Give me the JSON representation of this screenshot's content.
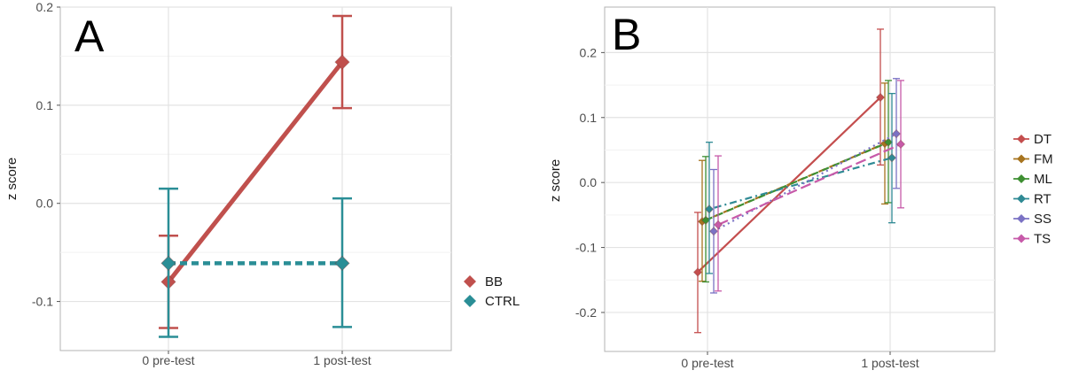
{
  "chart_data": [
    {
      "panel_label": "A",
      "type": "line",
      "x": [
        "0 pre-test",
        "1 post-test"
      ],
      "ylabel": "z score",
      "ylim": [
        -0.15,
        0.2
      ],
      "yticks": [
        -0.1,
        0.0,
        0.1,
        0.2
      ],
      "ytick_labels": [
        "-0.1",
        "0.0",
        "0.1",
        "0.2"
      ],
      "grid": true,
      "legend_position": "right",
      "series": [
        {
          "name": "BB",
          "color": "#c0504d",
          "marker": "diamond",
          "line": "solid",
          "values": [
            -0.08,
            0.144
          ],
          "err_lo": [
            -0.127,
            0.097
          ],
          "err_hi": [
            -0.033,
            0.191
          ]
        },
        {
          "name": "CTRL",
          "color": "#2a8e96",
          "marker": "diamond",
          "line": "dashed",
          "values": [
            -0.061,
            -0.061
          ],
          "err_lo": [
            -0.136,
            -0.126
          ],
          "err_hi": [
            0.015,
            0.005
          ]
        }
      ]
    },
    {
      "panel_label": "B",
      "type": "line",
      "x": [
        "0 pre-test",
        "1 post-test"
      ],
      "ylabel": "z score",
      "ylim": [
        -0.26,
        0.27
      ],
      "yticks": [
        -0.2,
        -0.1,
        0.0,
        0.1,
        0.2
      ],
      "ytick_labels": [
        "-0.2",
        "-0.1",
        "0.0",
        "0.1",
        "0.2"
      ],
      "grid": true,
      "legend_position": "right",
      "series": [
        {
          "name": "DT",
          "color": "#c44e4e",
          "marker": "diamond",
          "line": "solid",
          "values": [
            -0.138,
            0.131
          ],
          "err_lo": [
            -0.231,
            0.027
          ],
          "err_hi": [
            -0.046,
            0.236
          ]
        },
        {
          "name": "FM",
          "color": "#a7741f",
          "marker": "diamond",
          "line": "dashed",
          "values": [
            -0.06,
            0.06
          ],
          "err_lo": [
            -0.152,
            -0.033
          ],
          "err_hi": [
            0.034,
            0.153
          ]
        },
        {
          "name": "ML",
          "color": "#3e8f32",
          "marker": "diamond",
          "line": "dashed",
          "values": [
            -0.058,
            0.062
          ],
          "err_lo": [
            -0.153,
            -0.031
          ],
          "err_hi": [
            0.04,
            0.157
          ]
        },
        {
          "name": "RT",
          "color": "#2f8a94",
          "marker": "diamond",
          "line": "dotdash",
          "values": [
            -0.041,
            0.038
          ],
          "err_lo": [
            -0.14,
            -0.062
          ],
          "err_hi": [
            0.062,
            0.137
          ]
        },
        {
          "name": "SS",
          "color": "#7b72c4",
          "marker": "diamond",
          "line": "dotted",
          "values": [
            -0.075,
            0.075
          ],
          "err_lo": [
            -0.17,
            -0.009
          ],
          "err_hi": [
            0.02,
            0.16
          ]
        },
        {
          "name": "TS",
          "color": "#c75aa9",
          "marker": "diamond",
          "line": "longdash",
          "values": [
            -0.065,
            0.059
          ],
          "err_lo": [
            -0.167,
            -0.039
          ],
          "err_hi": [
            0.041,
            0.157
          ]
        }
      ]
    }
  ]
}
